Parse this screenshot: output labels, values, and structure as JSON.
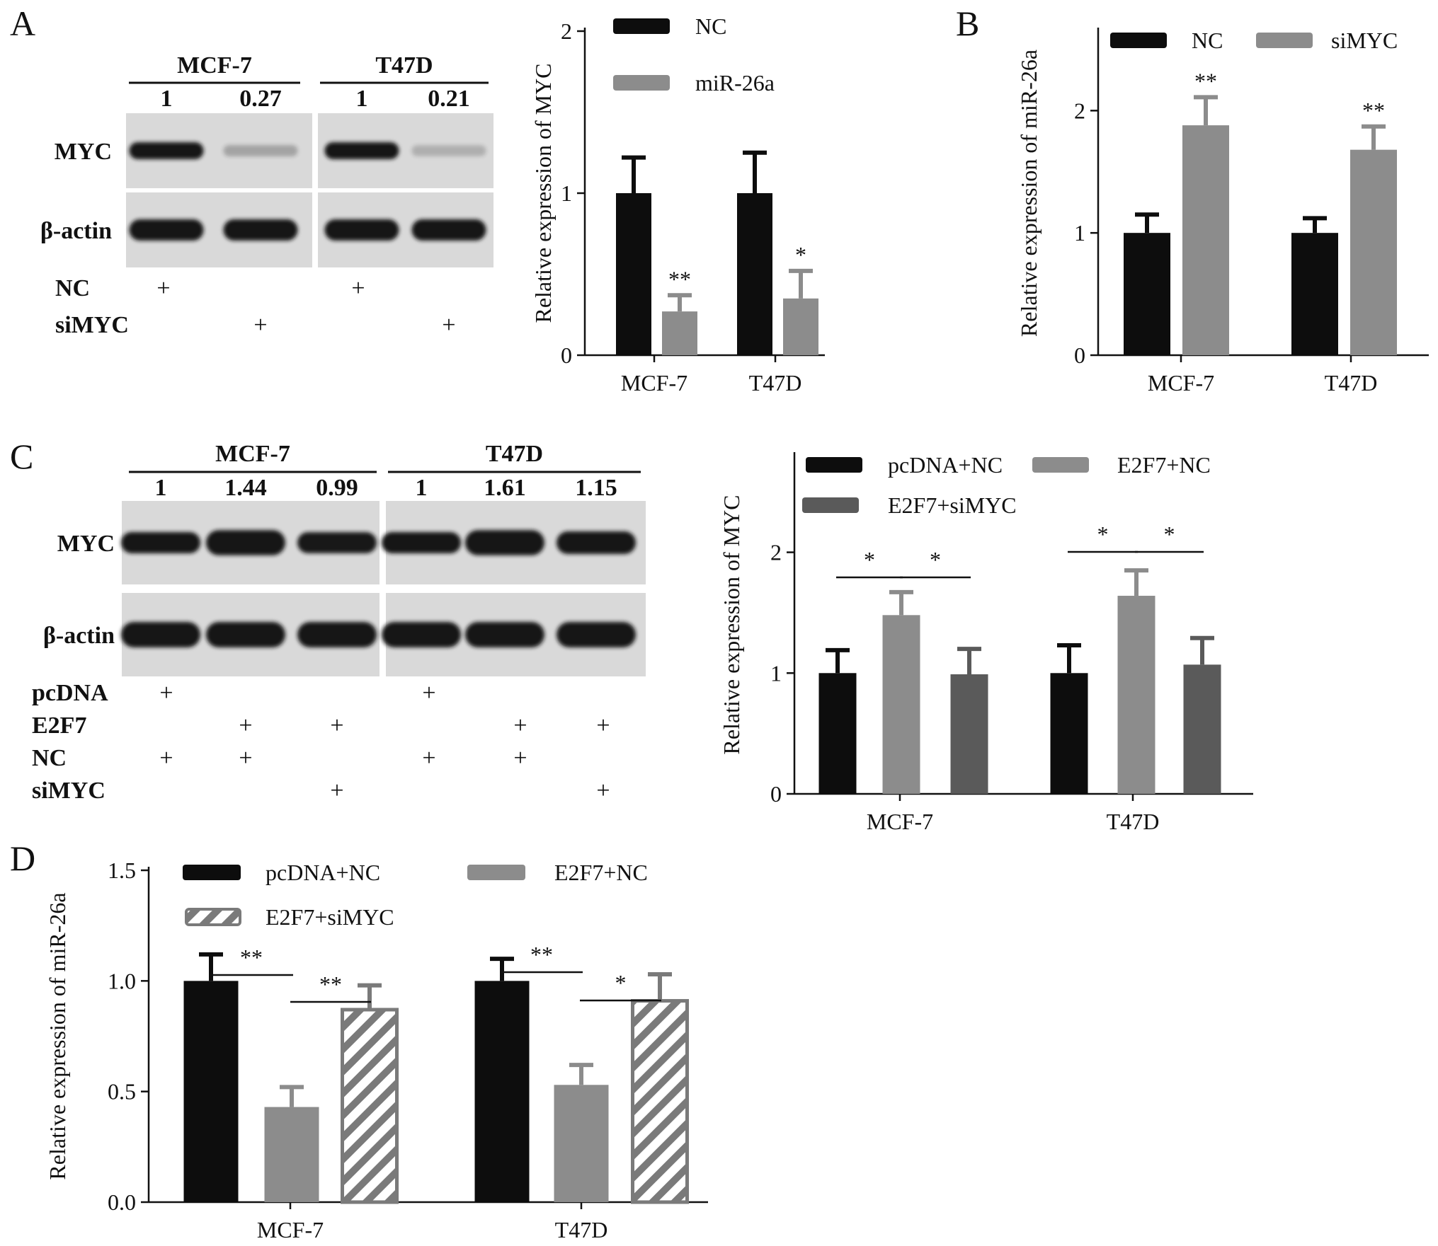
{
  "panels": {
    "A": {
      "letter": "A",
      "blot": {
        "cell_lines": [
          "MCF-7",
          "T47D"
        ],
        "densities": [
          [
            "1",
            "0.27"
          ],
          [
            "1",
            "0.21"
          ]
        ],
        "bands": [
          "MYC",
          "β-actin"
        ],
        "treatments": [
          {
            "label": "NC",
            "marks": [
              "+",
              "",
              "+",
              ""
            ]
          },
          {
            "label": "siMYC",
            "marks": [
              "",
              "+",
              "",
              "+"
            ]
          }
        ],
        "intensity": {
          "MYC": [
            1,
            0.27,
            1,
            0.21
          ],
          "beta_actin": [
            1,
            1,
            1,
            1
          ]
        }
      }
    },
    "B": {
      "letter": "B"
    },
    "C": {
      "letter": "C",
      "blot": {
        "cell_lines": [
          "MCF-7",
          "T47D"
        ],
        "densities": [
          [
            "1",
            "1.44",
            "0.99"
          ],
          [
            "1",
            "1.61",
            "1.15"
          ]
        ],
        "bands": [
          "MYC",
          "β-actin"
        ],
        "treatments": [
          {
            "label": "pcDNA",
            "marks": [
              "+",
              "",
              "",
              "+",
              "",
              ""
            ]
          },
          {
            "label": "E2F7",
            "marks": [
              "",
              "+",
              "+",
              "",
              "+",
              "+"
            ]
          },
          {
            "label": "NC",
            "marks": [
              "+",
              "+",
              "",
              "+",
              "+",
              ""
            ]
          },
          {
            "label": "siMYC",
            "marks": [
              "",
              "",
              "+",
              "",
              "",
              "+"
            ]
          }
        ],
        "intensity": {
          "MYC": [
            1,
            1.44,
            0.99,
            1,
            1.61,
            1.15
          ],
          "beta_actin": [
            1,
            1,
            1,
            1,
            1,
            1
          ]
        }
      }
    },
    "D": {
      "letter": "D"
    }
  },
  "colors": {
    "black": "#0d0d0d",
    "gray": "#8c8c8c",
    "dark_gray": "#5a5a5a",
    "hatch": "#7a7a7a"
  },
  "chart_data": [
    {
      "panel": "A",
      "type": "bar",
      "categories": [
        "MCF-7",
        "T47D"
      ],
      "series": [
        {
          "name": "NC",
          "values": [
            1.0,
            1.0
          ],
          "errors": [
            0.22,
            0.25
          ],
          "color": "#0d0d0d"
        },
        {
          "name": "miR-26a",
          "values": [
            0.27,
            0.35
          ],
          "errors": [
            0.1,
            0.17
          ],
          "color": "#8c8c8c"
        }
      ],
      "significance": [
        [
          "",
          "**"
        ],
        [
          "",
          "*"
        ]
      ],
      "ylabel": "Relative expression of MYC",
      "ylim": [
        0,
        2
      ],
      "yticks": [
        "0",
        "1",
        "2"
      ],
      "legend": "top"
    },
    {
      "panel": "B",
      "type": "bar",
      "categories": [
        "MCF-7",
        "T47D"
      ],
      "series": [
        {
          "name": "NC",
          "values": [
            1.0,
            1.0
          ],
          "errors": [
            0.15,
            0.12
          ],
          "color": "#0d0d0d"
        },
        {
          "name": "siMYC",
          "values": [
            1.88,
            1.68
          ],
          "errors": [
            0.23,
            0.19
          ],
          "color": "#8c8c8c"
        }
      ],
      "significance": [
        [
          "",
          "**"
        ],
        [
          "",
          "**"
        ]
      ],
      "ylabel": "Relative expression of miR-26a",
      "ylim": [
        0,
        2.65
      ],
      "yticks": [
        "0",
        "1",
        "2"
      ],
      "legend": "top"
    },
    {
      "panel": "C",
      "type": "bar",
      "categories": [
        "MCF-7",
        "T47D"
      ],
      "series": [
        {
          "name": "pcDNA+NC",
          "values": [
            1.0,
            1.0
          ],
          "errors": [
            0.19,
            0.23
          ],
          "color": "#0d0d0d"
        },
        {
          "name": "E2F7+NC",
          "values": [
            1.48,
            1.64
          ],
          "errors": [
            0.19,
            0.21
          ],
          "color": "#8c8c8c"
        },
        {
          "name": "E2F7+siMYC",
          "values": [
            0.99,
            1.07
          ],
          "errors": [
            0.21,
            0.22
          ],
          "color": "#5a5a5a"
        }
      ],
      "brackets": [
        {
          "group": 0,
          "from": 0,
          "to": 1,
          "label": "*"
        },
        {
          "group": 0,
          "from": 1,
          "to": 2,
          "label": "*"
        },
        {
          "group": 1,
          "from": 0,
          "to": 1,
          "label": "*"
        },
        {
          "group": 1,
          "from": 1,
          "to": 2,
          "label": "*"
        }
      ],
      "ylabel": "Relative expression of MYC",
      "ylim": [
        0,
        2.8
      ],
      "yticks": [
        "0",
        "1",
        "2"
      ],
      "legend": "top"
    },
    {
      "panel": "D",
      "type": "bar",
      "categories": [
        "MCF-7",
        "T47D"
      ],
      "series": [
        {
          "name": "pcDNA+NC",
          "values": [
            1.0,
            1.0
          ],
          "errors": [
            0.12,
            0.1
          ],
          "color": "#0d0d0d"
        },
        {
          "name": "E2F7+NC",
          "values": [
            0.43,
            0.53
          ],
          "errors": [
            0.09,
            0.09
          ],
          "color": "#8c8c8c"
        },
        {
          "name": "E2F7+siMYC",
          "values": [
            0.87,
            0.91
          ],
          "errors": [
            0.11,
            0.12
          ],
          "color": "#7a7a7a",
          "pattern": "hatched"
        }
      ],
      "brackets": [
        {
          "group": 0,
          "from": 0,
          "to": 1,
          "label": "**"
        },
        {
          "group": 0,
          "from": 1,
          "to": 2,
          "label": "**"
        },
        {
          "group": 1,
          "from": 0,
          "to": 1,
          "label": "**"
        },
        {
          "group": 1,
          "from": 1,
          "to": 2,
          "label": "*"
        }
      ],
      "ylabel": "Relative expression of miR-26a",
      "ylim": [
        0,
        1.5
      ],
      "yticks": [
        "0.0",
        "0.5",
        "1.0",
        "1.5"
      ],
      "legend": "top"
    }
  ]
}
